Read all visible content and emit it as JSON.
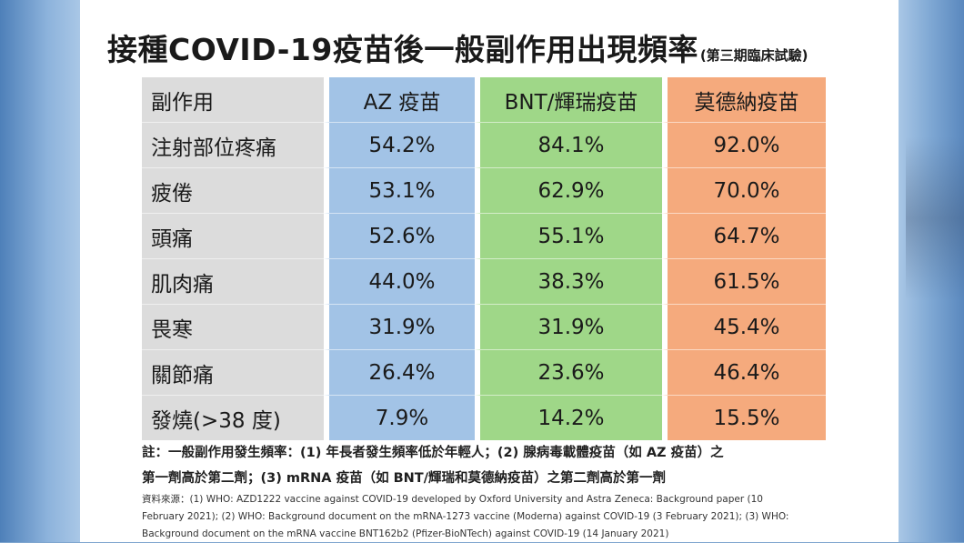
{
  "chart_data": {
    "type": "table",
    "title": "接種COVID-19疫苗後一般副作用出現頻率",
    "subtitle": "(第三期臨床試驗)",
    "columns": [
      "副作用",
      "AZ 疫苗",
      "BNT/輝瑞疫苗",
      "莫德納疫苗"
    ],
    "rows": [
      [
        "注射部位疼痛",
        "54.2%",
        "84.1%",
        "92.0%"
      ],
      [
        "疲倦",
        "53.1%",
        "62.9%",
        "70.0%"
      ],
      [
        "頭痛",
        "52.6%",
        "55.1%",
        "64.7%"
      ],
      [
        "肌肉痛",
        "44.0%",
        "38.3%",
        "61.5%"
      ],
      [
        "畏寒",
        "31.9%",
        "31.9%",
        "45.4%"
      ],
      [
        "關節痛",
        "26.4%",
        "23.6%",
        "46.4%"
      ],
      [
        "發燒(>38 度)",
        "7.9%",
        "14.2%",
        "15.5%"
      ]
    ],
    "column_colors": [
      "#dcdcdc",
      "#a2c3e6",
      "#9fd788",
      "#f5aa7d"
    ]
  },
  "note": {
    "line1": "註：一般副作用發生頻率：(1) 年長者發生頻率低於年輕人；(2) 腺病毒載體疫苗（如 AZ 疫苗）之",
    "line2": "第一劑高於第二劑；(3) mRNA 疫苗（如 BNT/輝瑞和莫德納疫苗）之第二劑高於第一劑"
  },
  "source": {
    "line1": "資料來源：(1) WHO: AZD1222 vaccine against COVID-19 developed by Oxford University and Astra Zeneca: Background paper (10",
    "line2": "February 2021); (2) WHO: Background document on the mRNA-1273 vaccine (Moderna) against COVID-19 (3 February 2021); (3) WHO:",
    "line3": "Background document on the mRNA vaccine BNT162b2 (Pfizer-BioNTech) against COVID-19 (14 January 2021)"
  }
}
